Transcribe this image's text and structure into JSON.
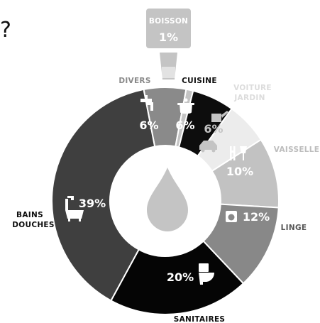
{
  "chart_data": {
    "type": "pie",
    "slices": [
      {
        "id": "divers",
        "lines": [
          "DIVERS"
        ],
        "pct_label": "6%",
        "value": 6,
        "color": "#8a8a8a",
        "label_color": "#8a8a8a"
      },
      {
        "id": "boisson",
        "lines": [
          "BOISSON"
        ],
        "pct_label": "1%",
        "value": 1,
        "color": "#c4c4c4",
        "label_color": "#ffffff"
      },
      {
        "id": "cuisine",
        "lines": [
          "CUISINE"
        ],
        "pct_label": "6%",
        "value": 6,
        "color": "#0d0d0d",
        "label_color": "#0d0d0d"
      },
      {
        "id": "voiture",
        "lines": [
          "VOITURE",
          "JARDIN"
        ],
        "pct_label": "6%",
        "value": 6,
        "color": "#ececec",
        "label_color": "#dcdcdc"
      },
      {
        "id": "vaisselle",
        "lines": [
          "VAISSELLE"
        ],
        "pct_label": "10%",
        "value": 10,
        "color": "#c2c2c2",
        "label_color": "#bdbdbd"
      },
      {
        "id": "linge",
        "lines": [
          "LINGE"
        ],
        "pct_label": "12%",
        "value": 12,
        "color": "#888888",
        "label_color": "#555555"
      },
      {
        "id": "sanitaires",
        "lines": [
          "SANITAIRES"
        ],
        "pct_label": "20%",
        "value": 20,
        "color": "#050505",
        "label_color": "#0d0d0d"
      },
      {
        "id": "bains",
        "lines": [
          "BAINS",
          "DOUCHES"
        ],
        "pct_label": "39%",
        "value": 39,
        "color": "#3f3f3f",
        "label_color": "#0d0d0d"
      }
    ]
  },
  "question_mark": "?",
  "colors": {
    "drop": "#c4c4c4",
    "glass": "#c4c4c4",
    "badge": "#c4c4c4"
  }
}
